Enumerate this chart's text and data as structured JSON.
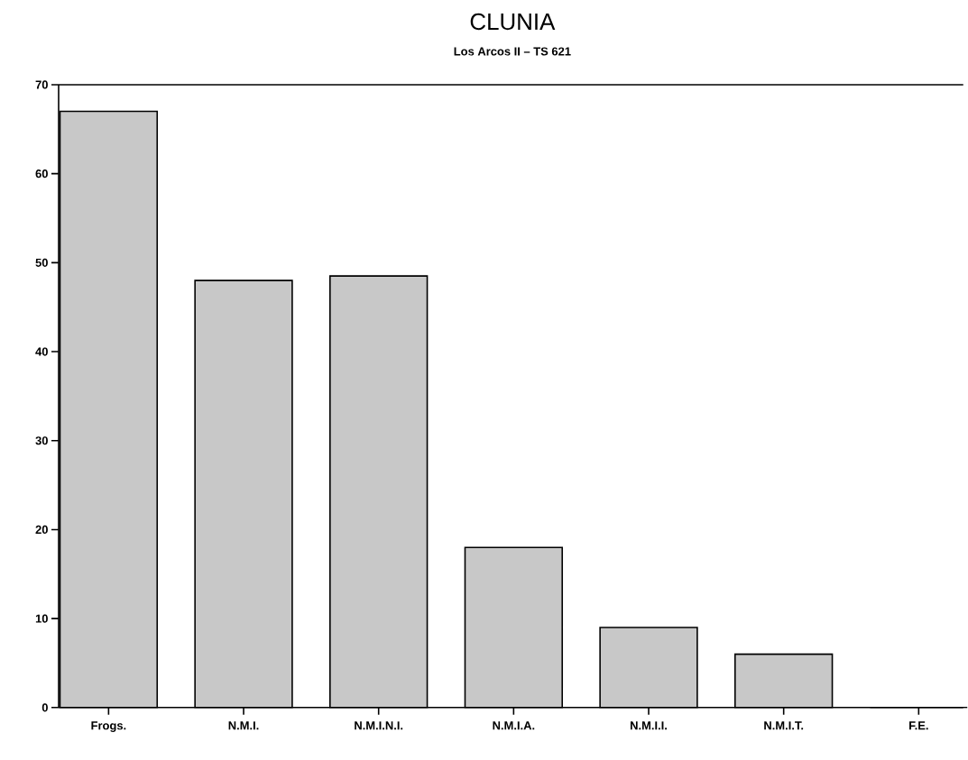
{
  "chart_data": {
    "type": "bar",
    "title": "CLUNIA",
    "subtitle": "Los Arcos II – TS 621",
    "categories": [
      "Frogs.",
      "N.M.I.",
      "N.M.I.N.I.",
      "N.M.I.A.",
      "N.M.I.I.",
      "N.M.I.T.",
      "F.E."
    ],
    "values": [
      67,
      48,
      48.5,
      18,
      9,
      6,
      0
    ],
    "color": "#c8c8c8",
    "ylim": [
      0,
      70
    ],
    "yticks": [
      0,
      10,
      20,
      30,
      40,
      50,
      60,
      70
    ],
    "grid": false
  }
}
